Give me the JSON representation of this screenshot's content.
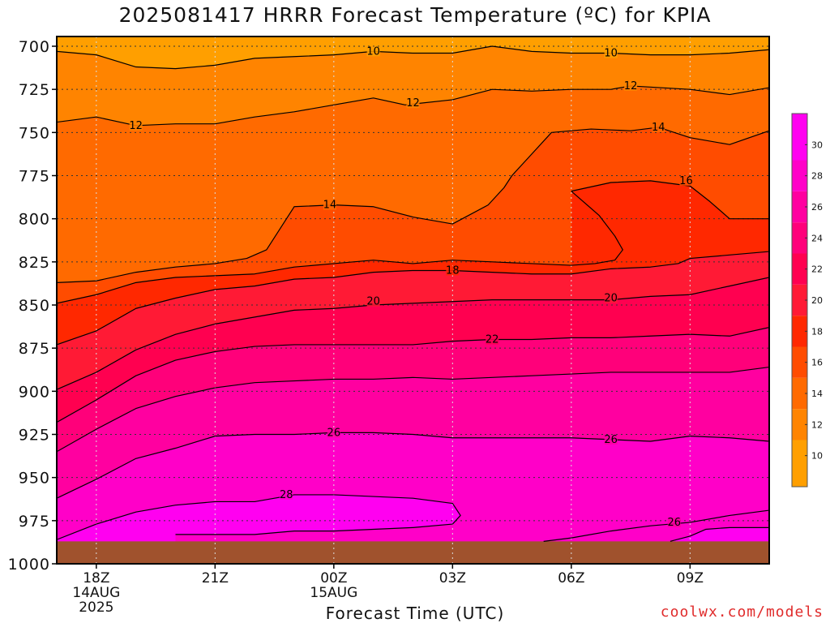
{
  "chart_data": {
    "type": "heatmap",
    "title": "2025081417 HRRR Forecast Temperature (ºC) for KPIA",
    "xlabel": "Forecast Time (UTC)",
    "ylabel": "",
    "credit": "coolwx.com/models",
    "y_axis": {
      "ticks": [
        700,
        725,
        750,
        775,
        800,
        825,
        850,
        875,
        900,
        925,
        950,
        975,
        1000
      ],
      "range": [
        700,
        1000
      ],
      "inverted": true,
      "units": "hPa"
    },
    "x_axis": {
      "ticks": [
        {
          "hour": 0,
          "label": "18Z",
          "date1": "14AUG",
          "date2": "2025"
        },
        {
          "hour": 3,
          "label": "21Z",
          "date1": "",
          "date2": ""
        },
        {
          "hour": 6,
          "label": "00Z",
          "date1": "15AUG",
          "date2": ""
        },
        {
          "hour": 9,
          "label": "03Z",
          "date1": "",
          "date2": ""
        },
        {
          "hour": 12,
          "label": "06Z",
          "date1": "",
          "date2": ""
        },
        {
          "hour": 15,
          "label": "09Z",
          "date1": "",
          "date2": ""
        }
      ],
      "range": [
        -1,
        17
      ]
    },
    "grid": true,
    "ground_level_hpa": 987,
    "ground_color": "#a0522d",
    "colorbar": {
      "ticks": [
        10,
        12,
        14,
        16,
        18,
        20,
        22,
        24,
        26,
        28,
        30
      ],
      "bands": [
        {
          "from": 8,
          "to": 11,
          "color": "#ff9f00"
        },
        {
          "from": 11,
          "to": 13,
          "color": "#ff8400"
        },
        {
          "from": 13,
          "to": 15,
          "color": "#ff6a00"
        },
        {
          "from": 15,
          "to": 17,
          "color": "#ff4c00"
        },
        {
          "from": 17,
          "to": 19,
          "color": "#ff2800"
        },
        {
          "from": 19,
          "to": 21,
          "color": "#ff1a35"
        },
        {
          "from": 21,
          "to": 23,
          "color": "#ff0050"
        },
        {
          "from": 23,
          "to": 25,
          "color": "#ff007a"
        },
        {
          "from": 25,
          "to": 27,
          "color": "#ff00a0"
        },
        {
          "from": 27,
          "to": 29,
          "color": "#ff00c8"
        },
        {
          "from": 29,
          "to": 32,
          "color": "#ff00f0"
        }
      ]
    },
    "top_fill_color": "#ff9f00",
    "contours": [
      {
        "level": 10,
        "points": [
          [
            -1,
            703
          ],
          [
            0,
            705
          ],
          [
            1,
            712
          ],
          [
            2,
            713
          ],
          [
            3,
            711
          ],
          [
            4,
            707
          ],
          [
            5,
            706
          ],
          [
            6,
            705
          ],
          [
            7,
            703
          ],
          [
            8,
            704
          ],
          [
            9,
            704
          ],
          [
            10,
            700
          ],
          [
            11,
            703
          ],
          [
            12,
            704
          ],
          [
            13,
            704
          ],
          [
            14,
            705
          ],
          [
            15,
            705
          ],
          [
            16,
            704
          ],
          [
            17,
            702
          ]
        ],
        "labels": [
          [
            7,
            703
          ],
          [
            13,
            704
          ]
        ]
      },
      {
        "level": 12,
        "points": [
          [
            -1,
            744
          ],
          [
            0,
            741
          ],
          [
            1,
            746
          ],
          [
            2,
            745
          ],
          [
            3,
            745
          ],
          [
            4,
            741
          ],
          [
            5,
            738
          ],
          [
            6,
            734
          ],
          [
            7,
            730
          ],
          [
            7.8,
            734
          ],
          [
            9,
            731
          ],
          [
            10,
            725
          ],
          [
            11,
            726
          ],
          [
            12,
            725
          ],
          [
            13,
            725
          ],
          [
            13.5,
            723
          ],
          [
            15,
            725
          ],
          [
            16,
            728
          ],
          [
            17,
            724
          ]
        ],
        "labels": [
          [
            1,
            746
          ],
          [
            8,
            733
          ],
          [
            13.5,
            723
          ]
        ]
      },
      {
        "level": 14,
        "points": [
          [
            -1,
            837
          ],
          [
            0,
            836
          ],
          [
            1,
            831
          ],
          [
            2,
            828
          ],
          [
            3,
            826
          ],
          [
            3.8,
            823
          ],
          [
            4.3,
            818
          ],
          [
            5,
            793
          ],
          [
            6,
            792
          ],
          [
            7,
            793
          ],
          [
            8,
            799
          ],
          [
            9,
            803
          ],
          [
            9.9,
            792
          ],
          [
            10.3,
            782
          ],
          [
            10.5,
            775
          ],
          [
            10.9,
            765
          ],
          [
            11.5,
            750
          ],
          [
            12,
            749
          ],
          [
            12.5,
            748
          ],
          [
            13.5,
            749
          ],
          [
            14.2,
            747
          ],
          [
            15,
            753
          ],
          [
            16,
            757
          ],
          [
            17,
            749
          ]
        ],
        "labels": [
          [
            5.9,
            792
          ],
          [
            14.2,
            747
          ]
        ]
      },
      {
        "level": 16,
        "points": [
          [
            12,
            784
          ],
          [
            12.2,
            788
          ],
          [
            12.7,
            798
          ],
          [
            13.1,
            810
          ],
          [
            13.3,
            818
          ],
          [
            13.1,
            824
          ],
          [
            12.6,
            826
          ],
          [
            12,
            827
          ],
          [
            11,
            826
          ],
          [
            10,
            825
          ],
          [
            9,
            824
          ],
          [
            8,
            826
          ],
          [
            7,
            824
          ],
          [
            6,
            826
          ],
          [
            5,
            828
          ],
          [
            4,
            832
          ],
          [
            3,
            833
          ],
          [
            2,
            834
          ],
          [
            1,
            837
          ],
          [
            0,
            844
          ],
          [
            -1,
            849
          ]
        ],
        "labels": [
          [
            14.9,
            778
          ]
        ]
      },
      {
        "level": 16,
        "points": [
          [
            12,
            784
          ],
          [
            13,
            779
          ],
          [
            14,
            778
          ],
          [
            15,
            781
          ],
          [
            15.5,
            790
          ],
          [
            16,
            800
          ],
          [
            17,
            800
          ]
        ],
        "labels": []
      },
      {
        "level": 18,
        "points": [
          [
            -1,
            873
          ],
          [
            0,
            865
          ],
          [
            1,
            852
          ],
          [
            2,
            846
          ],
          [
            3,
            841
          ],
          [
            4,
            839
          ],
          [
            5,
            835
          ],
          [
            6,
            834
          ],
          [
            7,
            831
          ],
          [
            8,
            830
          ],
          [
            9,
            830
          ],
          [
            10,
            831
          ],
          [
            11,
            832
          ],
          [
            12,
            832
          ],
          [
            13,
            829
          ],
          [
            14,
            828
          ],
          [
            14.7,
            826
          ],
          [
            15,
            823
          ],
          [
            16,
            821
          ],
          [
            17,
            819
          ]
        ],
        "labels": [
          [
            9,
            830
          ]
        ]
      },
      {
        "level": 20,
        "points": [
          [
            -1,
            899
          ],
          [
            0,
            889
          ],
          [
            1,
            876
          ],
          [
            2,
            867
          ],
          [
            3,
            861
          ],
          [
            4,
            857
          ],
          [
            5,
            853
          ],
          [
            6,
            852
          ],
          [
            7,
            850
          ],
          [
            8,
            849
          ],
          [
            9,
            848
          ],
          [
            10,
            847
          ],
          [
            11,
            847
          ],
          [
            12,
            847
          ],
          [
            13,
            847
          ],
          [
            14,
            845
          ],
          [
            15,
            844
          ],
          [
            16,
            839
          ],
          [
            17,
            834
          ]
        ],
        "labels": [
          [
            7,
            848
          ],
          [
            13,
            846
          ]
        ]
      },
      {
        "level": 22,
        "points": [
          [
            -1,
            918
          ],
          [
            0,
            905
          ],
          [
            1,
            891
          ],
          [
            2,
            882
          ],
          [
            3,
            877
          ],
          [
            4,
            874
          ],
          [
            5,
            873
          ],
          [
            6,
            873
          ],
          [
            7,
            873
          ],
          [
            8,
            873
          ],
          [
            9,
            871
          ],
          [
            10,
            870
          ],
          [
            11,
            870
          ],
          [
            12,
            869
          ],
          [
            13,
            869
          ],
          [
            14,
            868
          ],
          [
            15,
            867
          ],
          [
            16,
            868
          ],
          [
            17,
            863
          ]
        ],
        "labels": [
          [
            10,
            870
          ]
        ]
      },
      {
        "level": 24,
        "points": [
          [
            -1,
            935
          ],
          [
            0,
            922
          ],
          [
            1,
            910
          ],
          [
            2,
            903
          ],
          [
            3,
            898
          ],
          [
            4,
            895
          ],
          [
            5,
            894
          ],
          [
            6,
            893
          ],
          [
            7,
            893
          ],
          [
            8,
            892
          ],
          [
            9,
            893
          ],
          [
            10,
            892
          ],
          [
            11,
            891
          ],
          [
            12,
            890
          ],
          [
            13,
            889
          ],
          [
            14,
            889
          ],
          [
            15,
            889
          ],
          [
            16,
            889
          ],
          [
            17,
            886
          ]
        ],
        "labels": []
      },
      {
        "level": 26,
        "points": [
          [
            -1,
            962
          ],
          [
            0,
            951
          ],
          [
            1,
            939
          ],
          [
            2,
            933
          ],
          [
            3,
            926
          ],
          [
            4,
            925
          ],
          [
            5,
            925
          ],
          [
            6,
            924
          ],
          [
            7,
            924
          ],
          [
            8,
            925
          ],
          [
            9,
            927
          ],
          [
            10,
            927
          ],
          [
            11,
            927
          ],
          [
            12,
            927
          ],
          [
            13,
            928
          ],
          [
            14,
            929
          ],
          [
            15,
            926
          ],
          [
            16,
            927
          ],
          [
            17,
            929
          ]
        ],
        "labels": [
          [
            6,
            924
          ],
          [
            13,
            928
          ]
        ]
      },
      {
        "level": 26,
        "points": [
          [
            11.3,
            987
          ],
          [
            12,
            985
          ],
          [
            13,
            981
          ],
          [
            14,
            978
          ],
          [
            15,
            976
          ],
          [
            16,
            972
          ],
          [
            17,
            969
          ]
        ],
        "labels": [
          [
            14.6,
            976
          ]
        ]
      },
      {
        "level": 28,
        "points": [
          [
            -1,
            986
          ],
          [
            0,
            977
          ],
          [
            1,
            970
          ],
          [
            2,
            966
          ],
          [
            3,
            964
          ],
          [
            4,
            964
          ],
          [
            5,
            960
          ],
          [
            6,
            960
          ],
          [
            7,
            961
          ],
          [
            8,
            962
          ],
          [
            9,
            965
          ],
          [
            9.2,
            972
          ],
          [
            9,
            977
          ],
          [
            8,
            979
          ],
          [
            7,
            980
          ],
          [
            6,
            981
          ],
          [
            5,
            981
          ],
          [
            4,
            983
          ],
          [
            3,
            983
          ],
          [
            2,
            983
          ]
        ],
        "labels": [
          [
            4.8,
            960
          ]
        ]
      },
      {
        "level": 30,
        "points": [
          [
            14.5,
            987
          ],
          [
            15,
            984
          ],
          [
            15.4,
            980
          ],
          [
            16,
            979
          ],
          [
            17,
            979
          ]
        ],
        "labels": []
      }
    ]
  }
}
